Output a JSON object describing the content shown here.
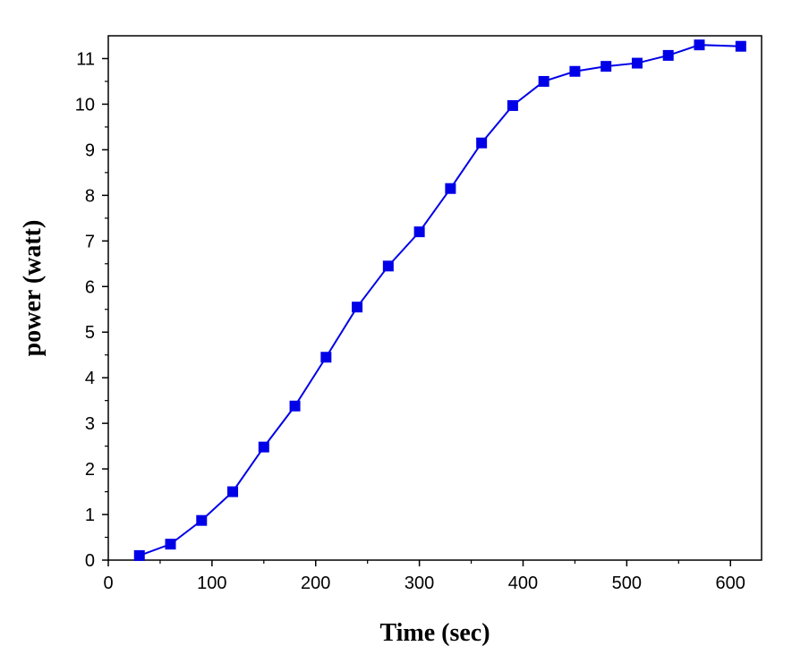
{
  "chart_data": {
    "type": "line",
    "xlabel": "Time (sec)",
    "ylabel": "power (watt)",
    "xlim": [
      0,
      630
    ],
    "ylim": [
      0,
      11.5
    ],
    "xticks": [
      0,
      100,
      200,
      300,
      400,
      500,
      600
    ],
    "yticks": [
      0,
      1,
      2,
      3,
      4,
      5,
      6,
      7,
      8,
      9,
      10,
      11
    ],
    "grid": false,
    "legend": "none",
    "series": [
      {
        "color": "#0000e8",
        "marker": "square",
        "x": [
          30,
          60,
          90,
          120,
          150,
          180,
          210,
          240,
          270,
          300,
          330,
          360,
          390,
          420,
          450,
          480,
          510,
          540,
          570,
          610
        ],
        "y": [
          0.1,
          0.35,
          0.87,
          1.5,
          2.48,
          3.38,
          4.45,
          5.55,
          6.45,
          7.2,
          8.15,
          9.15,
          9.97,
          10.5,
          10.72,
          10.83,
          10.9,
          11.07,
          11.3,
          11.27
        ]
      }
    ]
  }
}
